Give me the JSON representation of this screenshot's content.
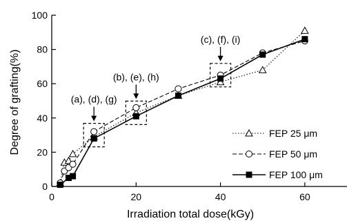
{
  "chart_data": {
    "type": "line",
    "xlabel": "Irradiation total dose(kGy)",
    "ylabel": "Degree of grafting(%)",
    "xlim": [
      0,
      70
    ],
    "ylim": [
      0,
      100
    ],
    "xticks": [
      0,
      20,
      40,
      60
    ],
    "yticks": [
      0,
      20,
      40,
      60,
      80,
      100
    ],
    "grid": false,
    "legend_position": "right",
    "series": [
      {
        "name": "FEP 25 μm",
        "marker": "open-triangle",
        "line": "dotted",
        "x": [
          2,
          3,
          4,
          5,
          10,
          20,
          30,
          40,
          50,
          60
        ],
        "y": [
          2,
          14,
          15,
          19,
          29,
          43,
          53,
          61,
          68,
          91
        ]
      },
      {
        "name": "FEP 50 μm",
        "marker": "open-circle",
        "line": "dashed",
        "x": [
          2,
          3,
          4,
          5,
          10,
          20,
          30,
          40,
          50,
          60
        ],
        "y": [
          2,
          9,
          11,
          13,
          32,
          46,
          57,
          65,
          78,
          85
        ]
      },
      {
        "name": "FEP 100 μm",
        "marker": "filled-square",
        "line": "solid",
        "x": [
          2,
          4,
          5,
          10,
          20,
          30,
          40,
          50,
          60
        ],
        "y": [
          1,
          5,
          6,
          28,
          41,
          53,
          63,
          77,
          86
        ]
      }
    ],
    "annotations": [
      {
        "label": "(a), (d), (g)",
        "x": 10
      },
      {
        "label": "(b), (e), (h)",
        "x": 20
      },
      {
        "label": "(c), (f), (i)",
        "x": 40
      }
    ]
  }
}
